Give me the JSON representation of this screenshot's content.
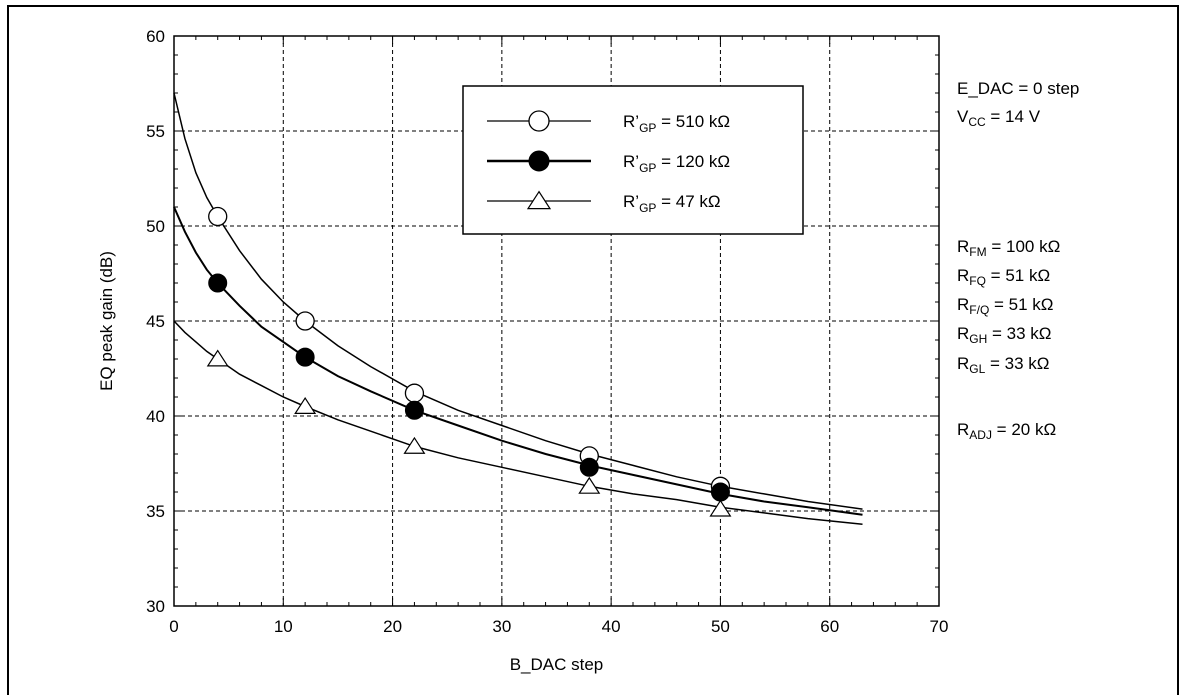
{
  "chart_data": {
    "type": "line",
    "xlabel": "B_DAC step",
    "ylabel": "EQ peak gain (dB)",
    "xlim": [
      0,
      70
    ],
    "ylim": [
      30,
      60
    ],
    "xticks": [
      0,
      10,
      20,
      30,
      40,
      50,
      60,
      70
    ],
    "yticks": [
      30,
      35,
      40,
      45,
      50,
      55,
      60
    ],
    "grid": true,
    "legend_position": "top-center",
    "series": [
      {
        "name": "R’GP = 510 kΩ",
        "legend_main": "R’",
        "legend_sub": "GP",
        "legend_rest": " = 510 kΩ",
        "marker": "open-circle",
        "line_style": "thin",
        "x": [
          4,
          12,
          22,
          38,
          50
        ],
        "y": [
          50.5,
          45.0,
          41.2,
          37.9,
          36.3
        ],
        "curve_x": [
          0,
          1,
          2,
          3,
          4,
          6,
          8,
          10,
          12,
          15,
          18,
          22,
          26,
          30,
          34,
          38,
          42,
          46,
          50,
          54,
          58,
          63
        ],
        "curve_y": [
          57.0,
          54.6,
          52.8,
          51.5,
          50.5,
          48.7,
          47.2,
          46.0,
          45.0,
          43.7,
          42.6,
          41.3,
          40.3,
          39.5,
          38.7,
          38.0,
          37.4,
          36.8,
          36.3,
          35.9,
          35.5,
          35.1
        ]
      },
      {
        "name": "R’GP = 120 kΩ",
        "legend_main": "R’",
        "legend_sub": "GP",
        "legend_rest": " = 120 kΩ",
        "marker": "filled-circle",
        "line_style": "thick",
        "x": [
          4,
          12,
          22,
          38,
          50
        ],
        "y": [
          47.0,
          43.1,
          40.3,
          37.3,
          36.0
        ],
        "curve_x": [
          0,
          1,
          2,
          3,
          4,
          6,
          8,
          10,
          12,
          15,
          18,
          22,
          26,
          30,
          34,
          38,
          42,
          46,
          50,
          54,
          58,
          63
        ],
        "curve_y": [
          51.0,
          49.7,
          48.6,
          47.7,
          47.0,
          45.8,
          44.7,
          43.9,
          43.1,
          42.1,
          41.3,
          40.3,
          39.5,
          38.7,
          38.0,
          37.4,
          36.9,
          36.4,
          35.9,
          35.5,
          35.2,
          34.8
        ]
      },
      {
        "name": "R’GP = 47 kΩ",
        "legend_main": "R’",
        "legend_sub": "GP",
        "legend_rest": " = 47 kΩ",
        "marker": "open-triangle",
        "line_style": "thin",
        "x": [
          4,
          12,
          22,
          38,
          50
        ],
        "y": [
          43.0,
          40.5,
          38.4,
          36.3,
          35.1
        ],
        "curve_x": [
          0,
          1,
          2,
          3,
          4,
          6,
          8,
          10,
          12,
          15,
          18,
          22,
          26,
          30,
          34,
          38,
          42,
          46,
          50,
          54,
          58,
          63
        ],
        "curve_y": [
          45.0,
          44.4,
          43.9,
          43.4,
          43.0,
          42.2,
          41.6,
          41.0,
          40.5,
          39.8,
          39.2,
          38.4,
          37.8,
          37.3,
          36.8,
          36.3,
          35.9,
          35.6,
          35.2,
          34.9,
          34.6,
          34.3
        ]
      }
    ]
  },
  "annotations": {
    "edac": {
      "text": "E_DAC = 0 step"
    },
    "vcc": {
      "main": "V",
      "sub": "CC",
      "rest": " = 14 V"
    },
    "rfm": {
      "main": "R",
      "sub": "FM",
      "rest": " = 100 kΩ"
    },
    "rfq": {
      "main": "R",
      "sub": "FQ",
      "rest": " = 51 kΩ"
    },
    "rfslq": {
      "main": "R",
      "sub": "F/Q",
      "rest": " = 51 kΩ"
    },
    "rgh": {
      "main": "R",
      "sub": "GH",
      "rest": " = 33 kΩ"
    },
    "rgl": {
      "main": "R",
      "sub": "GL",
      "rest": " = 33 kΩ"
    },
    "radj": {
      "main": "R",
      "sub": "ADJ",
      "rest": " = 20 kΩ"
    }
  }
}
